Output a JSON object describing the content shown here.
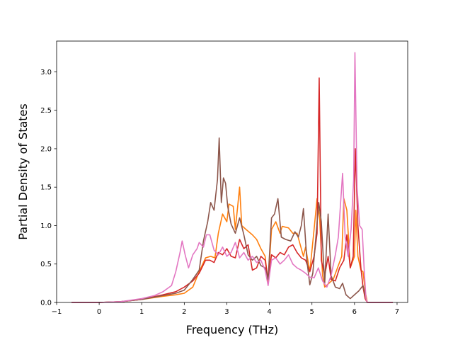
{
  "chart_data": {
    "type": "line",
    "title": "",
    "xlabel": "Frequency (THz)",
    "ylabel": "Partial Density of States",
    "xlim": [
      -1.0,
      7.25
    ],
    "ylim": [
      0.0,
      3.4
    ],
    "xticks": [
      -1,
      0,
      1,
      2,
      3,
      4,
      5,
      6,
      7
    ],
    "xtick_labels": [
      "−1",
      "0",
      "1",
      "2",
      "3",
      "4",
      "5",
      "6",
      "7"
    ],
    "yticks": [
      0.0,
      0.5,
      1.0,
      1.5,
      2.0,
      2.5,
      3.0
    ],
    "ytick_labels": [
      "0.0",
      "0.5",
      "1.0",
      "1.5",
      "2.0",
      "2.5",
      "3.0"
    ],
    "grid": false,
    "legend": "none",
    "series": [
      {
        "color": "#ff7f0e",
        "points": [
          [
            -0.65,
            0
          ],
          [
            0,
            0
          ],
          [
            0.5,
            0.01
          ],
          [
            1.0,
            0.04
          ],
          [
            1.5,
            0.08
          ],
          [
            1.8,
            0.1
          ],
          [
            2.0,
            0.12
          ],
          [
            2.2,
            0.2
          ],
          [
            2.35,
            0.4
          ],
          [
            2.5,
            0.58
          ],
          [
            2.62,
            0.6
          ],
          [
            2.72,
            0.58
          ],
          [
            2.8,
            0.9
          ],
          [
            2.9,
            1.15
          ],
          [
            3.0,
            1.05
          ],
          [
            3.05,
            1.28
          ],
          [
            3.15,
            1.25
          ],
          [
            3.2,
            0.95
          ],
          [
            3.3,
            1.5
          ],
          [
            3.35,
            1.0
          ],
          [
            3.45,
            0.95
          ],
          [
            3.6,
            0.88
          ],
          [
            3.7,
            0.82
          ],
          [
            3.8,
            0.7
          ],
          [
            3.9,
            0.6
          ],
          [
            3.97,
            0.25
          ],
          [
            4.05,
            0.95
          ],
          [
            4.15,
            1.05
          ],
          [
            4.25,
            0.9
          ],
          [
            4.3,
            0.99
          ],
          [
            4.45,
            0.97
          ],
          [
            4.55,
            0.9
          ],
          [
            4.65,
            0.9
          ],
          [
            4.75,
            0.7
          ],
          [
            4.8,
            0.6
          ],
          [
            4.85,
            0.72
          ],
          [
            4.95,
            0.4
          ],
          [
            5.05,
            0.95
          ],
          [
            5.12,
            1.35
          ],
          [
            5.18,
            1.1
          ],
          [
            5.25,
            0.35
          ],
          [
            5.3,
            0.2
          ],
          [
            5.4,
            0.25
          ],
          [
            5.5,
            0.3
          ],
          [
            5.6,
            0.45
          ],
          [
            5.7,
            0.6
          ],
          [
            5.75,
            1.35
          ],
          [
            5.82,
            1.2
          ],
          [
            5.9,
            0.45
          ],
          [
            6.0,
            0.6
          ],
          [
            6.03,
            1.2
          ],
          [
            6.08,
            0.6
          ],
          [
            6.15,
            0.42
          ],
          [
            6.2,
            0.4
          ],
          [
            6.25,
            0.15
          ],
          [
            6.3,
            0
          ],
          [
            6.9,
            0
          ]
        ]
      },
      {
        "color": "#d62728",
        "points": [
          [
            -0.65,
            0
          ],
          [
            0,
            0
          ],
          [
            0.5,
            0.01
          ],
          [
            1.0,
            0.04
          ],
          [
            1.5,
            0.1
          ],
          [
            1.8,
            0.14
          ],
          [
            2.0,
            0.2
          ],
          [
            2.2,
            0.28
          ],
          [
            2.35,
            0.38
          ],
          [
            2.5,
            0.55
          ],
          [
            2.6,
            0.55
          ],
          [
            2.7,
            0.52
          ],
          [
            2.8,
            0.65
          ],
          [
            2.9,
            0.62
          ],
          [
            3.0,
            0.7
          ],
          [
            3.1,
            0.6
          ],
          [
            3.2,
            0.58
          ],
          [
            3.3,
            0.82
          ],
          [
            3.4,
            0.7
          ],
          [
            3.5,
            0.75
          ],
          [
            3.6,
            0.42
          ],
          [
            3.7,
            0.45
          ],
          [
            3.8,
            0.6
          ],
          [
            3.9,
            0.55
          ],
          [
            3.97,
            0.3
          ],
          [
            4.05,
            0.62
          ],
          [
            4.15,
            0.58
          ],
          [
            4.25,
            0.65
          ],
          [
            4.35,
            0.62
          ],
          [
            4.45,
            0.72
          ],
          [
            4.55,
            0.75
          ],
          [
            4.65,
            0.65
          ],
          [
            4.75,
            0.58
          ],
          [
            4.85,
            0.55
          ],
          [
            4.95,
            0.4
          ],
          [
            5.05,
            0.6
          ],
          [
            5.12,
            0.9
          ],
          [
            5.17,
            2.92
          ],
          [
            5.22,
            0.55
          ],
          [
            5.3,
            0.35
          ],
          [
            5.38,
            0.6
          ],
          [
            5.45,
            0.3
          ],
          [
            5.55,
            0.28
          ],
          [
            5.65,
            0.45
          ],
          [
            5.75,
            0.55
          ],
          [
            5.82,
            0.88
          ],
          [
            5.9,
            0.45
          ],
          [
            5.97,
            0.6
          ],
          [
            6.02,
            2.0
          ],
          [
            6.08,
            1.0
          ],
          [
            6.15,
            0.45
          ],
          [
            6.2,
            0.2
          ],
          [
            6.25,
            0.05
          ],
          [
            6.3,
            0
          ],
          [
            6.9,
            0
          ]
        ]
      },
      {
        "color": "#8c564b",
        "points": [
          [
            -0.65,
            0
          ],
          [
            0,
            0
          ],
          [
            0.5,
            0.01
          ],
          [
            1.0,
            0.04
          ],
          [
            1.5,
            0.09
          ],
          [
            1.8,
            0.12
          ],
          [
            2.0,
            0.16
          ],
          [
            2.2,
            0.3
          ],
          [
            2.35,
            0.42
          ],
          [
            2.45,
            0.8
          ],
          [
            2.55,
            1.05
          ],
          [
            2.62,
            1.3
          ],
          [
            2.7,
            1.2
          ],
          [
            2.78,
            1.6
          ],
          [
            2.82,
            2.14
          ],
          [
            2.87,
            1.3
          ],
          [
            2.92,
            1.62
          ],
          [
            2.97,
            1.55
          ],
          [
            3.02,
            1.25
          ],
          [
            3.1,
            1.02
          ],
          [
            3.2,
            0.9
          ],
          [
            3.3,
            1.1
          ],
          [
            3.4,
            0.88
          ],
          [
            3.5,
            0.62
          ],
          [
            3.6,
            0.55
          ],
          [
            3.7,
            0.6
          ],
          [
            3.8,
            0.48
          ],
          [
            3.9,
            0.45
          ],
          [
            3.97,
            0.3
          ],
          [
            4.05,
            1.1
          ],
          [
            4.12,
            1.15
          ],
          [
            4.2,
            1.35
          ],
          [
            4.28,
            0.85
          ],
          [
            4.38,
            0.82
          ],
          [
            4.5,
            0.8
          ],
          [
            4.6,
            0.92
          ],
          [
            4.68,
            0.85
          ],
          [
            4.75,
            1.0
          ],
          [
            4.8,
            1.22
          ],
          [
            4.88,
            0.55
          ],
          [
            4.95,
            0.23
          ],
          [
            5.02,
            0.38
          ],
          [
            5.1,
            0.9
          ],
          [
            5.16,
            1.3
          ],
          [
            5.22,
            1.05
          ],
          [
            5.3,
            0.25
          ],
          [
            5.38,
            1.15
          ],
          [
            5.45,
            0.35
          ],
          [
            5.55,
            0.2
          ],
          [
            5.65,
            0.18
          ],
          [
            5.72,
            0.25
          ],
          [
            5.8,
            0.1
          ],
          [
            5.9,
            0.05
          ],
          [
            6.0,
            0.1
          ],
          [
            6.1,
            0.15
          ],
          [
            6.2,
            0.22
          ],
          [
            6.27,
            0.05
          ],
          [
            6.3,
            0
          ],
          [
            6.9,
            0
          ]
        ]
      },
      {
        "color": "#e377c2",
        "points": [
          [
            -0.65,
            0
          ],
          [
            0,
            0
          ],
          [
            0.5,
            0.01
          ],
          [
            1.0,
            0.05
          ],
          [
            1.3,
            0.09
          ],
          [
            1.5,
            0.14
          ],
          [
            1.7,
            0.22
          ],
          [
            1.8,
            0.4
          ],
          [
            1.9,
            0.65
          ],
          [
            1.95,
            0.8
          ],
          [
            2.02,
            0.62
          ],
          [
            2.1,
            0.45
          ],
          [
            2.2,
            0.62
          ],
          [
            2.3,
            0.7
          ],
          [
            2.35,
            0.78
          ],
          [
            2.45,
            0.72
          ],
          [
            2.52,
            0.88
          ],
          [
            2.6,
            0.88
          ],
          [
            2.7,
            0.68
          ],
          [
            2.8,
            0.62
          ],
          [
            2.9,
            0.72
          ],
          [
            3.0,
            0.6
          ],
          [
            3.1,
            0.65
          ],
          [
            3.2,
            0.78
          ],
          [
            3.3,
            0.58
          ],
          [
            3.4,
            0.65
          ],
          [
            3.5,
            0.55
          ],
          [
            3.6,
            0.6
          ],
          [
            3.7,
            0.52
          ],
          [
            3.8,
            0.55
          ],
          [
            3.9,
            0.42
          ],
          [
            3.97,
            0.22
          ],
          [
            4.05,
            0.55
          ],
          [
            4.15,
            0.58
          ],
          [
            4.25,
            0.5
          ],
          [
            4.35,
            0.55
          ],
          [
            4.45,
            0.62
          ],
          [
            4.55,
            0.5
          ],
          [
            4.65,
            0.45
          ],
          [
            4.75,
            0.42
          ],
          [
            4.85,
            0.38
          ],
          [
            4.95,
            0.33
          ],
          [
            5.05,
            0.32
          ],
          [
            5.15,
            0.45
          ],
          [
            5.25,
            0.28
          ],
          [
            5.35,
            0.2
          ],
          [
            5.45,
            0.35
          ],
          [
            5.55,
            0.62
          ],
          [
            5.62,
            0.85
          ],
          [
            5.68,
            1.35
          ],
          [
            5.72,
            1.68
          ],
          [
            5.78,
            0.85
          ],
          [
            5.85,
            0.6
          ],
          [
            5.92,
            0.95
          ],
          [
            5.98,
            1.6
          ],
          [
            6.01,
            3.25
          ],
          [
            6.06,
            1.5
          ],
          [
            6.12,
            1.0
          ],
          [
            6.18,
            0.95
          ],
          [
            6.23,
            0.4
          ],
          [
            6.27,
            0.05
          ],
          [
            6.3,
            0
          ],
          [
            6.9,
            0
          ]
        ]
      }
    ]
  }
}
